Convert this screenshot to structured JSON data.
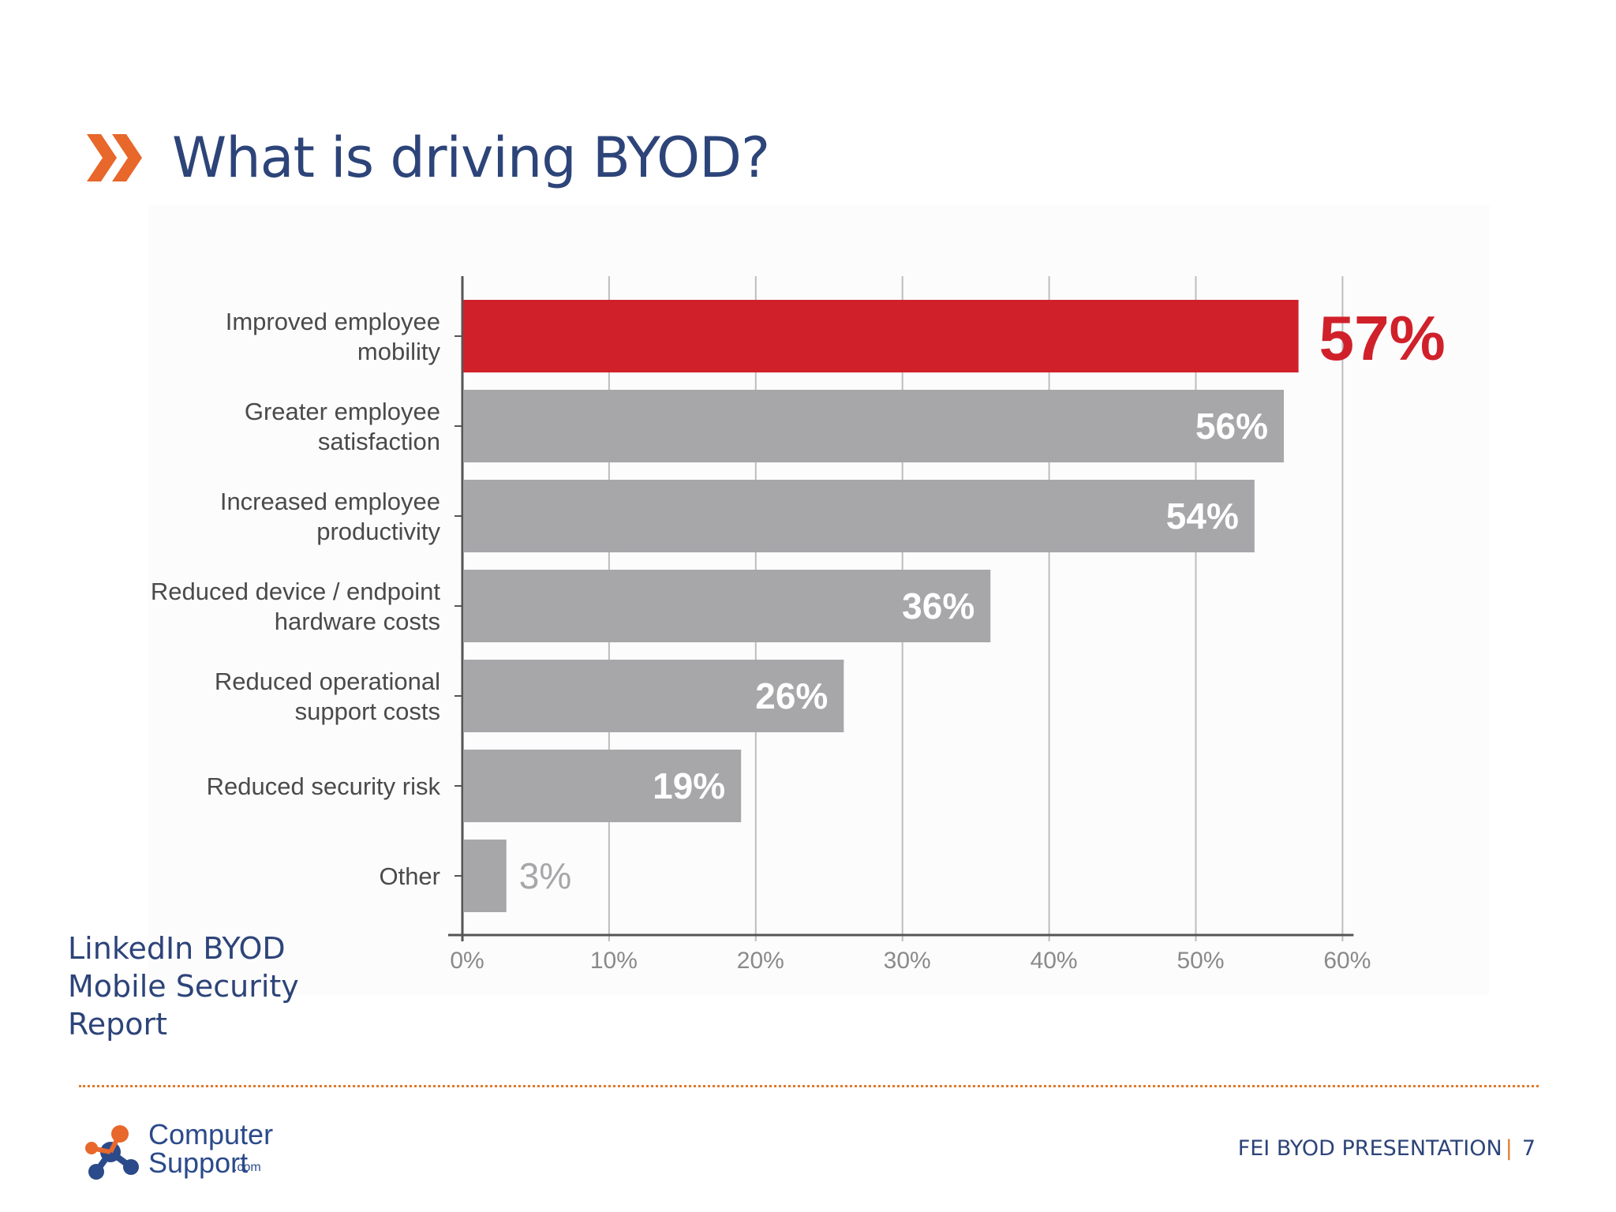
{
  "slide": {
    "title": "What is driving BYOD?",
    "source": "LinkedIn BYOD Mobile Security Report",
    "footer_text": "FEI BYOD PRESENTATION",
    "page_number": "7"
  },
  "logo": {
    "line1": "Computer",
    "line2": "Support",
    "suffix": ".com"
  },
  "colors": {
    "title": "#2d4479",
    "accent": "#e07a2c",
    "highlight_bar": "#d0212b",
    "bar": "#a7a6a9",
    "axis": "#555555",
    "label": "#4a4a4a",
    "tick": "#8a8a8a"
  },
  "icons": {
    "title_bullet": "double-chevron-right-icon",
    "logo": "computersupport-logo-icon"
  },
  "chart_data": {
    "type": "bar",
    "orientation": "horizontal",
    "categories": [
      [
        "Improved employee",
        "mobility"
      ],
      [
        "Greater employee",
        "satisfaction"
      ],
      [
        "Increased employee",
        "productivity"
      ],
      [
        "Reduced device / endpoint",
        "hardware costs"
      ],
      [
        "Reduced operational",
        "support costs"
      ],
      [
        "Reduced security risk"
      ],
      [
        "Other"
      ]
    ],
    "values": [
      57,
      56,
      54,
      36,
      26,
      19,
      3
    ],
    "value_labels": [
      "57%",
      "56%",
      "54%",
      "36%",
      "26%",
      "19%",
      "3%"
    ],
    "highlight_index": 0,
    "xlim": [
      0,
      60
    ],
    "xticks": [
      0,
      10,
      20,
      30,
      40,
      50,
      60
    ],
    "xtick_labels": [
      "0%",
      "10%",
      "20%",
      "30%",
      "40%",
      "50%",
      "60%"
    ],
    "grid": "vertical",
    "title": "",
    "xlabel": "",
    "ylabel": ""
  }
}
